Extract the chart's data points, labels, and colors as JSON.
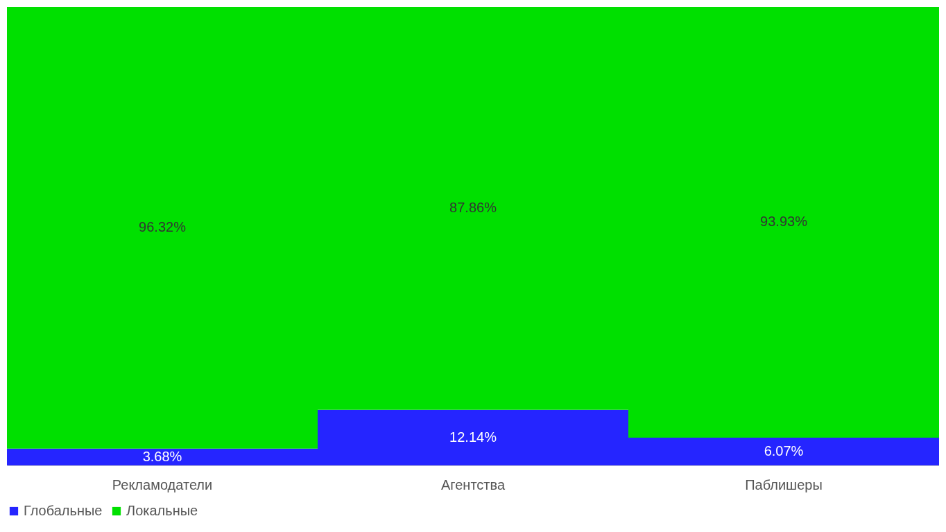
{
  "chart_data": {
    "type": "bar",
    "stacked": true,
    "legend": "bottom",
    "grid": false,
    "categories": [
      "Рекламодатели",
      "Агентства",
      "Паблишеры"
    ],
    "series": [
      {
        "name": "Глобальные",
        "color": "#2525ff",
        "values": [
          3.68,
          12.14,
          6.07
        ],
        "value_labels": [
          "3.68%",
          "12.14%",
          "6.07%"
        ]
      },
      {
        "name": "Локальные",
        "color": "#00e000",
        "values": [
          96.32,
          87.86,
          93.93
        ],
        "value_labels": [
          "96.32%",
          "87.86%",
          "93.93%"
        ]
      }
    ]
  }
}
